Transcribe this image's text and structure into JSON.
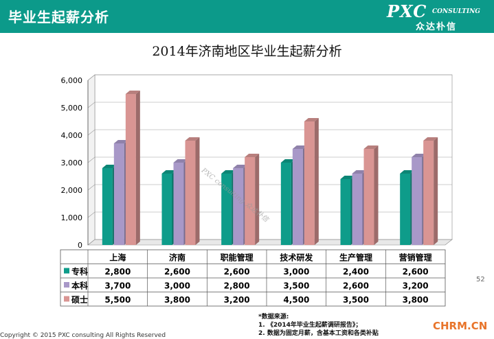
{
  "header": {
    "title": "毕业生起薪分析"
  },
  "logo": {
    "main": "PXC",
    "sub": "CONSULTING",
    "cn": "众达朴信"
  },
  "watermark": "PXC consulting 众达朴信",
  "colors": {
    "header_bg": "#0c9a8a",
    "series": [
      "#0e9c8a",
      "#a898c8",
      "#d99593"
    ]
  },
  "chart_data": {
    "type": "bar",
    "title": "2014年济南地区毕业生起薪分析",
    "categories": [
      "上海",
      "济南",
      "职能管理",
      "技术研发",
      "生产管理",
      "营销管理"
    ],
    "series": [
      {
        "name": "专科",
        "values": [
          2800,
          2600,
          2600,
          3000,
          2400,
          2600
        ]
      },
      {
        "name": "本科",
        "values": [
          3700,
          3000,
          2800,
          3500,
          2600,
          3200
        ]
      },
      {
        "name": "硕士",
        "values": [
          5500,
          3800,
          3200,
          4500,
          3500,
          3800
        ]
      }
    ],
    "table_values": [
      [
        "2,800",
        "2,600",
        "2,600",
        "3,000",
        "2,400",
        "2,600"
      ],
      [
        "3,700",
        "3,000",
        "2,800",
        "3,500",
        "2,600",
        "3,200"
      ],
      [
        "5,500",
        "3,800",
        "3,200",
        "4,500",
        "3,500",
        "3,800"
      ]
    ],
    "ylim": [
      0,
      6000
    ],
    "yticks": [
      0,
      1000,
      2000,
      3000,
      4000,
      5000,
      6000
    ],
    "ytick_labels": [
      "0",
      "1,000",
      "2,000",
      "3,000",
      "4,000",
      "5,000",
      "6,000"
    ],
    "grid": true,
    "legend": "data-table"
  },
  "footer": {
    "copyright": "Copyright © 2015  PXC consulting All Rights Reserved",
    "notes_title": "*数据来源:",
    "notes": [
      "1.   《2014年毕业生起薪调研报告》；",
      "2.   数据为固定月薪，含基本工资和各类补贴"
    ],
    "page_number": "52",
    "site": "CHRM.CN"
  }
}
